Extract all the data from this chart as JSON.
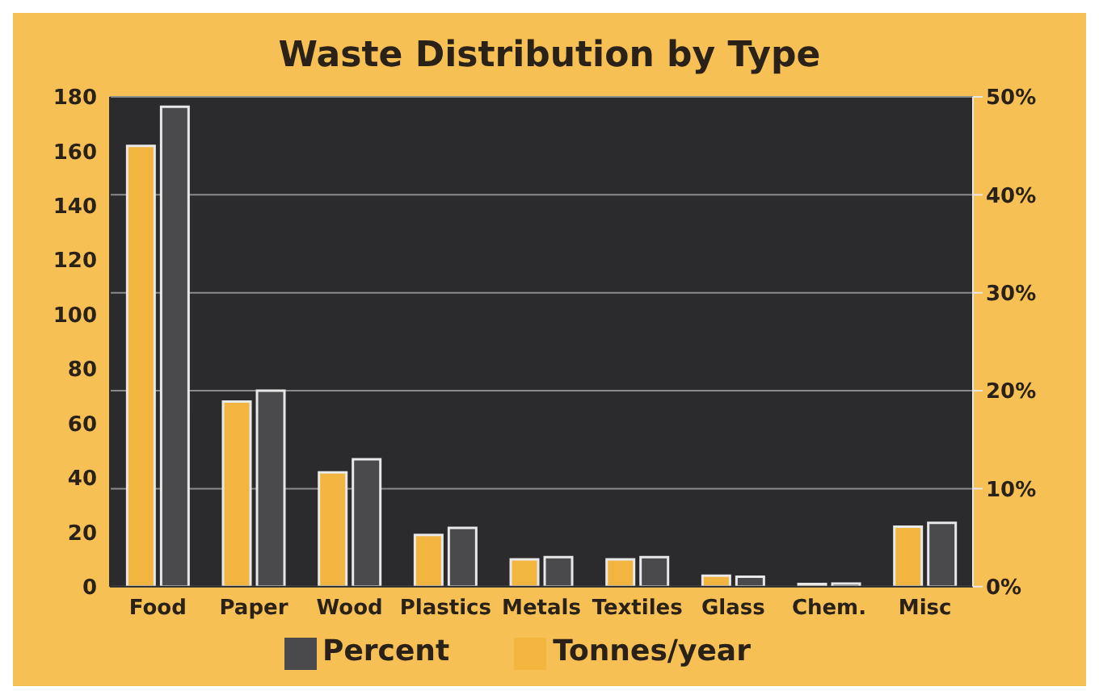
{
  "chart_data": {
    "type": "bar",
    "title": "Waste Distribution by Type",
    "categories": [
      "Food",
      "Paper",
      "Wood",
      "Plastics",
      "Metals",
      "Textiles",
      "Glass",
      "Chem.",
      "Misc"
    ],
    "series": [
      {
        "name": "Tonnes/year",
        "color": "#f2b640",
        "values": [
          162,
          68,
          42,
          19,
          10,
          10,
          4,
          1,
          22
        ]
      },
      {
        "name": "Percent",
        "color": "#4a4a4c",
        "axis": "y2",
        "values": [
          49,
          20,
          13,
          6,
          3,
          3,
          1,
          0.3,
          6.5
        ]
      }
    ],
    "ylim": [
      0,
      180
    ],
    "yticks": [
      0,
      20,
      40,
      60,
      80,
      100,
      120,
      140,
      160,
      180
    ],
    "y2lim": [
      0,
      50
    ],
    "y2ticks": [
      {
        "value": 0,
        "label": "0%"
      },
      {
        "value": 10,
        "label": "10%"
      },
      {
        "value": 20,
        "label": "20%"
      },
      {
        "value": 30,
        "label": "30%"
      },
      {
        "value": 40,
        "label": "40%"
      },
      {
        "value": 50,
        "label": "50%"
      }
    ],
    "grid": "y",
    "legend": "bottom"
  }
}
